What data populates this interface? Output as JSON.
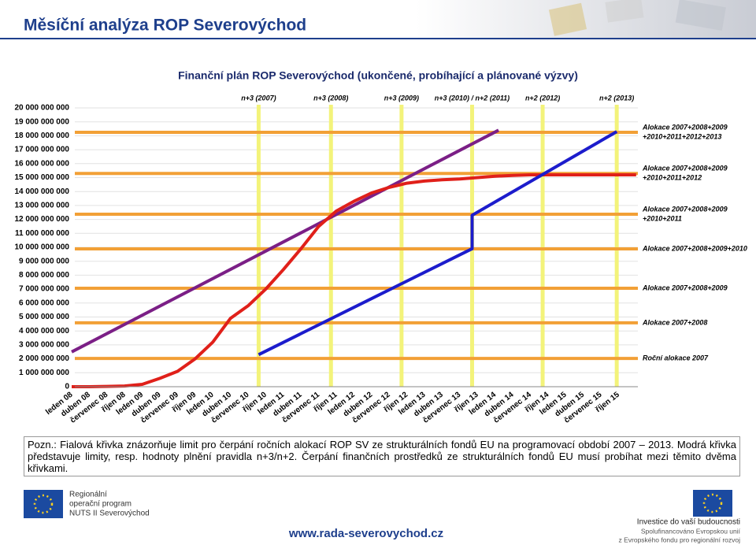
{
  "header": {
    "title": "Měsíční analýza ROP Severovýchod"
  },
  "chart_data": {
    "type": "line",
    "title": "Finanční plán ROP Severovýchod (ukončené, probíhající a plánované výzvy)",
    "categories": [
      "leden 08",
      "duben 08",
      "červenec 08",
      "říjen 08",
      "leden 09",
      "duben 09",
      "červenec 09",
      "říjen 09",
      "leden 10",
      "duben 10",
      "červenec 10",
      "říjen 10",
      "leden 11",
      "duben 11",
      "červenec 11",
      "říjen 11",
      "leden 12",
      "duben 12",
      "červenec 12",
      "říjen 12",
      "leden 13",
      "duben 13",
      "červenec 13",
      "říjen 13",
      "leden 14",
      "duben 14",
      "červenec 14",
      "říjen 14",
      "leden 15",
      "duben 15",
      "červenec 15",
      "říjen 15"
    ],
    "ylim": [
      0,
      20000000000
    ],
    "yticks": [
      0,
      {
        "value": 1000000000,
        "label": "1 000 000 000"
      },
      {
        "value": 2000000000,
        "label": "2 000 000 000"
      },
      {
        "value": 3000000000,
        "label": "3 000 000 000"
      },
      {
        "value": 4000000000,
        "label": "4 000 000 000"
      },
      {
        "value": 5000000000,
        "label": "5 000 000 000"
      },
      {
        "value": 6000000000,
        "label": "6 000 000 000"
      },
      {
        "value": 7000000000,
        "label": "7 000 000 000"
      },
      {
        "value": 8000000000,
        "label": "8 000 000 000"
      },
      {
        "value": 9000000000,
        "label": "9 000 000 000"
      },
      {
        "value": 10000000000,
        "label": "10 000 000 000"
      },
      {
        "value": 11000000000,
        "label": "11 000 000 000"
      },
      {
        "value": 12000000000,
        "label": "12 000 000 000"
      },
      {
        "value": 13000000000,
        "label": "13 000 000 000"
      },
      {
        "value": 14000000000,
        "label": "14 000 000 000"
      },
      {
        "value": 15000000000,
        "label": "15 000 000 000"
      },
      {
        "value": 16000000000,
        "label": "16 000 000 000"
      },
      {
        "value": 17000000000,
        "label": "17 000 000 000"
      },
      {
        "value": 18000000000,
        "label": "18 000 000 000"
      },
      {
        "value": 19000000000,
        "label": "19 000 000 000"
      },
      {
        "value": 20000000000,
        "label": "20 000 000 000"
      }
    ],
    "grid": true,
    "series": [
      {
        "color": "#7b1f86",
        "x": [
          0,
          24.2
        ],
        "values": [
          2500000000,
          18400000000
        ]
      },
      {
        "color": "#e0201a",
        "x": [
          0,
          1,
          2,
          3,
          4,
          5,
          6,
          7,
          8,
          9,
          10,
          11,
          12,
          13,
          14,
          15,
          16,
          17,
          18,
          19,
          20,
          21,
          22,
          23,
          24,
          25,
          26,
          27,
          28,
          29,
          30,
          31,
          32
        ],
        "values": [
          0,
          0,
          20000000,
          50000000,
          170000000,
          600000000,
          1100000000,
          2000000000,
          3200000000,
          4900000000,
          5800000000,
          7000000000,
          8400000000,
          9900000000,
          11500000000,
          12600000000,
          13300000000,
          13900000000,
          14300000000,
          14600000000,
          14750000000,
          14850000000,
          14900000000,
          15000000000,
          15100000000,
          15150000000,
          15200000000,
          15200000000,
          15200000000,
          15200000000,
          15200000000,
          15200000000,
          15200000000
        ]
      },
      {
        "color": "#1c1ccc",
        "x": [
          10.6,
          22.7,
          22.7,
          30.9
        ],
        "values": [
          2300000000,
          9900000000,
          12300000000,
          18300000000
        ]
      }
    ],
    "vlines": [
      {
        "label": "n+3 (2007)",
        "x": 10.6
      },
      {
        "label": "n+3 (2008)",
        "x": 14.7
      },
      {
        "label": "n+3 (2009)",
        "x": 18.7
      },
      {
        "label": "n+3 (2010) / n+2 (2011)",
        "x": 22.7
      },
      {
        "label": "n+2 (2012)",
        "x": 26.7
      },
      {
        "label": "n+2 (2013)",
        "x": 30.9
      }
    ],
    "vline_color": "#f3f37a",
    "hline_color": "#f2a036",
    "hlines": [
      {
        "label": [
          "Alokace 2007+2008+2009",
          "+2010+2011+2012+2013"
        ],
        "value": 18250000000
      },
      {
        "label": [
          "Alokace 2007+2008+2009",
          "+2010+2011+2012"
        ],
        "value": 15300000000
      },
      {
        "label": [
          "Alokace 2007+2008+2009",
          "+2010+2011"
        ],
        "value": 12370000000
      },
      {
        "label": [
          "Alokace 2007+2008+2009+2010"
        ],
        "value": 9890000000
      },
      {
        "label": [
          "Alokace 2007+2008+2009"
        ],
        "value": 7060000000
      },
      {
        "label": [
          "Alokace 2007+2008"
        ],
        "value": 4580000000
      },
      {
        "label": [
          "Roční alokace 2007"
        ],
        "value": 2030000000
      }
    ]
  },
  "note": "Pozn.: Fialová křivka znázorňuje limit pro čerpání ročních alokací ROP SV ze strukturálních fondů EU na programovací období 2007 – 2013. Modrá křivka představuje limity, resp. hodnoty plnění pravidla n+3/n+2. Čerpání finančních prostředků ze strukturálních fondů EU musí probíhat mezi těmito dvěma křivkami.",
  "footer": {
    "left": [
      "Regionální",
      "operační program",
      "NUTS II Severovýchod"
    ],
    "url": "www.rada-severovychod.cz",
    "right": [
      "Investice do vaší budoucnosti",
      "Spolufinancováno Evropskou unií",
      "z Evropského fondu pro regionální rozvoj"
    ]
  }
}
